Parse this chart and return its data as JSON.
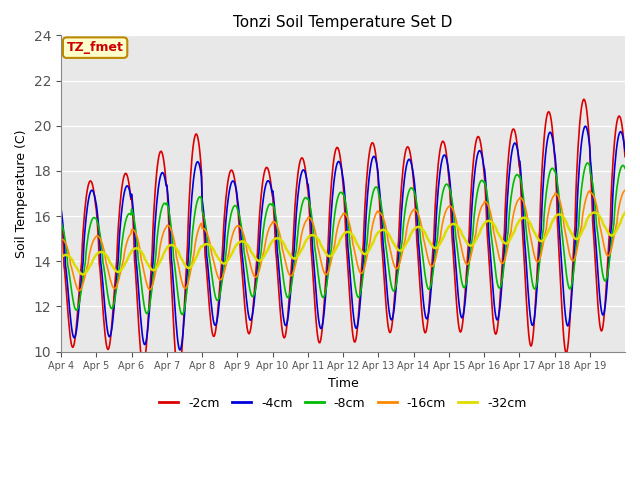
{
  "title": "Tonzi Soil Temperature Set D",
  "xlabel": "Time",
  "ylabel": "Soil Temperature (C)",
  "ylim": [
    10,
    24
  ],
  "yticks": [
    10,
    12,
    14,
    16,
    18,
    20,
    22,
    24
  ],
  "fig_bg": "#ffffff",
  "plot_bg": "#e8e8e8",
  "grid_color": "#ffffff",
  "annotation_text": "TZ_fmet",
  "annotation_bg": "#ffffcc",
  "annotation_border": "#bb8800",
  "annotation_text_color": "#cc0000",
  "series_order": [
    "-2cm",
    "-4cm",
    "-8cm",
    "-16cm",
    "-32cm"
  ],
  "series": {
    "-2cm": {
      "color": "#dd0000",
      "linewidth": 1.2
    },
    "-4cm": {
      "color": "#0000dd",
      "linewidth": 1.2
    },
    "-8cm": {
      "color": "#00bb00",
      "linewidth": 1.2
    },
    "-16cm": {
      "color": "#ff8800",
      "linewidth": 1.2
    },
    "-32cm": {
      "color": "#dddd00",
      "linewidth": 1.8
    }
  },
  "xtick_labels": [
    "Apr 4",
    "Apr 5",
    "Apr 6",
    "Apr 7",
    "Apr 8",
    "Apr 9",
    "Apr 10",
    "Apr 11",
    "Apr 12",
    "Apr 13",
    "Apr 14",
    "Apr 15",
    "Apr 16",
    "Apr 17",
    "Apr 18",
    "Apr 19"
  ],
  "n_days": 16,
  "points_per_day": 48,
  "base_temp": 13.8,
  "trend": 0.12,
  "amplitudes": {
    "-2cm": 4.3,
    "-4cm": 3.6,
    "-8cm": 2.3,
    "-16cm": 1.3,
    "-32cm": 0.5
  },
  "phase_shifts_hours": {
    "-2cm": 0.0,
    "-4cm": 1.0,
    "-8cm": 2.5,
    "-16cm": 4.5,
    "-32cm": 7.0
  },
  "peak_hour": 14.0,
  "day_amp_seeds": {
    "-2cm": 10,
    "-4cm": 20,
    "-8cm": 30,
    "-16cm": 40,
    "-32cm": 50
  },
  "day_amp_variations": {
    "-2cm": [
      0.85,
      0.9,
      1.1,
      1.25,
      0.85,
      0.85,
      0.92,
      1.0,
      1.02,
      0.95,
      0.98,
      1.0,
      1.05,
      1.2,
      1.3,
      1.1
    ],
    "-4cm": [
      0.9,
      0.92,
      1.05,
      1.15,
      0.88,
      0.85,
      0.95,
      1.02,
      1.05,
      0.98,
      1.0,
      1.02,
      1.08,
      1.18,
      1.22,
      1.12
    ],
    "-8cm": [
      0.88,
      0.9,
      1.05,
      1.12,
      0.9,
      0.88,
      0.95,
      1.0,
      1.05,
      0.98,
      1.0,
      1.02,
      1.08,
      1.15,
      1.2,
      1.1
    ],
    "-16cm": [
      0.9,
      0.92,
      1.05,
      1.1,
      0.9,
      0.9,
      0.95,
      1.0,
      1.05,
      0.98,
      1.0,
      1.02,
      1.08,
      1.12,
      1.18,
      1.1
    ],
    "-32cm": [
      0.92,
      0.94,
      1.03,
      1.08,
      0.92,
      0.92,
      0.96,
      1.0,
      1.04,
      0.98,
      1.0,
      1.02,
      1.06,
      1.1,
      1.15,
      1.08
    ]
  }
}
